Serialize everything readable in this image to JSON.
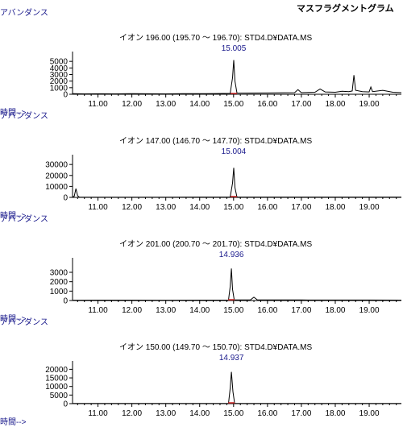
{
  "page": {
    "title": "マスフラグメントグラム"
  },
  "chart_data": [
    {
      "type": "line",
      "title": "イオン 196.00 (195.70 ～ 196.70): STD4.D¥DATA.MS",
      "ylabel": "アバンダンス",
      "xlabel": "時間-->",
      "xlim": [
        10.25,
        19.95
      ],
      "ylim": [
        0,
        6000
      ],
      "yticks": [
        0,
        1000,
        2000,
        3000,
        4000,
        5000
      ],
      "yticklabels": [
        "0",
        "1000",
        "2000",
        "3000",
        "4000",
        "5000"
      ],
      "xticks": [
        11,
        12,
        13,
        14,
        15,
        16,
        17,
        18,
        19
      ],
      "xticklabels": [
        "11.00",
        "12.00",
        "13.00",
        "14.00",
        "15.00",
        "16.00",
        "17.00",
        "18.00",
        "19.00"
      ],
      "peak_label": {
        "x": 15.005,
        "text": "15.005"
      },
      "series": [
        {
          "x": [
            10.25,
            10.6,
            11.0,
            11.5,
            12.0,
            12.5,
            13.0,
            13.5,
            14.0,
            14.5,
            14.9,
            14.97,
            15.005,
            15.04,
            15.1,
            15.5,
            16.0,
            16.5,
            16.8,
            16.9,
            17.0,
            17.4,
            17.55,
            17.7,
            18.0,
            18.2,
            18.4,
            18.5,
            18.55,
            18.6,
            18.8,
            19.0,
            19.05,
            19.1,
            19.4,
            19.7,
            19.95
          ],
          "y": [
            80,
            60,
            70,
            60,
            80,
            70,
            60,
            80,
            90,
            110,
            140,
            2500,
            5200,
            2000,
            200,
            180,
            200,
            230,
            250,
            700,
            250,
            300,
            800,
            350,
            300,
            450,
            400,
            500,
            2900,
            600,
            400,
            350,
            1100,
            400,
            600,
            300,
            250
          ]
        }
      ]
    },
    {
      "type": "line",
      "title": "イオン 147.00 (146.70 ～ 147.70): STD4.D¥DATA.MS",
      "ylabel": "アバンダンス",
      "xlabel": "時間-->",
      "xlim": [
        10.25,
        19.95
      ],
      "ylim": [
        0,
        36000
      ],
      "yticks": [
        0,
        10000,
        20000,
        30000
      ],
      "yticklabels": [
        "0",
        "10000",
        "20000",
        "30000"
      ],
      "xticks": [
        11,
        12,
        13,
        14,
        15,
        16,
        17,
        18,
        19
      ],
      "xticklabels": [
        "11.00",
        "12.00",
        "13.00",
        "14.00",
        "15.00",
        "16.00",
        "17.00",
        "18.00",
        "19.00"
      ],
      "peak_label": {
        "x": 15.004,
        "text": "15.004"
      },
      "series": [
        {
          "x": [
            10.25,
            10.3,
            10.35,
            10.4,
            10.45,
            10.6,
            11.0,
            12.0,
            13.0,
            14.0,
            14.9,
            14.97,
            15.004,
            15.04,
            15.1,
            16.0,
            17.0,
            18.0,
            19.0,
            19.95
          ],
          "y": [
            300,
            1000,
            8000,
            1500,
            300,
            200,
            200,
            250,
            200,
            300,
            300,
            13000,
            27000,
            9000,
            300,
            300,
            300,
            300,
            300,
            300
          ]
        }
      ]
    },
    {
      "type": "line",
      "title": "イオン 201.00 (200.70 ～ 201.70): STD4.D¥DATA.MS",
      "ylabel": "アバンダンス",
      "xlabel": "時間-->",
      "xlim": [
        10.25,
        19.95
      ],
      "ylim": [
        0,
        4200
      ],
      "yticks": [
        0,
        1000,
        2000,
        3000
      ],
      "yticklabels": [
        "0",
        "1000",
        "2000",
        "3000"
      ],
      "xticks": [
        11,
        12,
        13,
        14,
        15,
        16,
        17,
        18,
        19
      ],
      "xticklabels": [
        "11.00",
        "12.00",
        "13.00",
        "14.00",
        "15.00",
        "16.00",
        "17.00",
        "18.00",
        "19.00"
      ],
      "peak_label": {
        "x": 14.936,
        "text": "14.936"
      },
      "series": [
        {
          "x": [
            10.25,
            11.0,
            12.0,
            13.0,
            14.0,
            14.85,
            14.9,
            14.936,
            14.97,
            15.02,
            15.5,
            15.6,
            15.7,
            16.0,
            17.0,
            18.0,
            19.0,
            19.95
          ],
          "y": [
            30,
            40,
            40,
            30,
            40,
            50,
            1500,
            3400,
            1200,
            60,
            80,
            350,
            80,
            60,
            60,
            50,
            50,
            40
          ]
        }
      ]
    },
    {
      "type": "line",
      "title": "イオン 150.00 (149.70 ～ 150.70): STD4.D¥DATA.MS",
      "ylabel": "アバンダンス",
      "xlabel": "時間-->",
      "xlim": [
        10.25,
        19.95
      ],
      "ylim": [
        0,
        23000
      ],
      "yticks": [
        0,
        5000,
        10000,
        15000,
        20000
      ],
      "yticklabels": [
        "0",
        "5000",
        "10000",
        "15000",
        "20000"
      ],
      "xticks": [
        11,
        12,
        13,
        14,
        15,
        16,
        17,
        18,
        19
      ],
      "xticklabels": [
        "11.00",
        "12.00",
        "13.00",
        "14.00",
        "15.00",
        "16.00",
        "17.00",
        "18.00",
        "19.00"
      ],
      "peak_label": {
        "x": 14.937,
        "text": "14.937"
      },
      "series": [
        {
          "x": [
            10.25,
            11.0,
            12.0,
            13.0,
            14.0,
            14.85,
            14.9,
            14.937,
            14.98,
            15.03,
            16.0,
            17.0,
            18.0,
            19.0,
            19.95
          ],
          "y": [
            80,
            80,
            80,
            80,
            80,
            90,
            9000,
            18500,
            7000,
            100,
            80,
            80,
            80,
            80,
            80
          ]
        }
      ]
    }
  ]
}
